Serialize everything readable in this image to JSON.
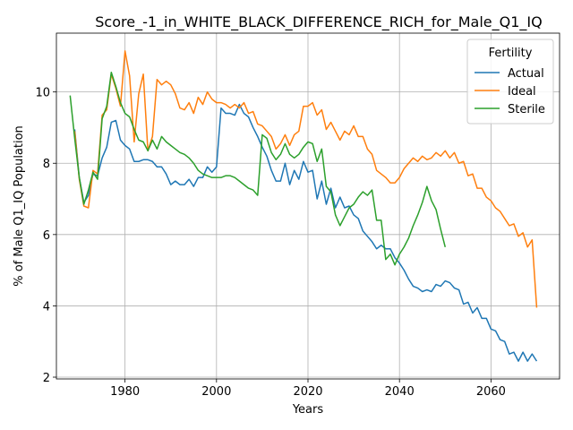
{
  "chart_data": {
    "type": "line",
    "title": "Score_-1_in_WHITE_BLACK_DIFFERENCE_RICH_for_Male_Q1_IQ",
    "xlabel": "Years",
    "ylabel": "% of Male Q1_IQ Population",
    "xlim": [
      1965,
      2075
    ],
    "ylim": [
      1.95,
      11.65
    ],
    "xticks": [
      1980,
      2000,
      2020,
      2040,
      2060
    ],
    "yticks": [
      2,
      4,
      6,
      8,
      10
    ],
    "grid": true,
    "legend": {
      "title": "Fertility",
      "placement": "top-right"
    },
    "series": [
      {
        "name": "Actual",
        "color": "#1f77b4",
        "x": [
          1969,
          1970,
          1971,
          1972,
          1973,
          1974,
          1975,
          1976,
          1977,
          1978,
          1979,
          1980,
          1981,
          1982,
          1983,
          1984,
          1985,
          1986,
          1987,
          1988,
          1989,
          1990,
          1991,
          1992,
          1993,
          1994,
          1995,
          1996,
          1997,
          1998,
          1999,
          2000,
          2001,
          2002,
          2003,
          2004,
          2005,
          2006,
          2007,
          2008,
          2009,
          2010,
          2011,
          2012,
          2013,
          2014,
          2015,
          2016,
          2017,
          2018,
          2019,
          2020,
          2021,
          2022,
          2023,
          2024,
          2025,
          2026,
          2027,
          2028,
          2029,
          2030,
          2031,
          2032,
          2033,
          2034,
          2035,
          2036,
          2037,
          2038,
          2039,
          2040,
          2041,
          2042,
          2043,
          2044,
          2045,
          2046,
          2047,
          2048,
          2049,
          2050,
          2051,
          2052,
          2053,
          2054,
          2055,
          2056,
          2057,
          2058,
          2059,
          2060,
          2061,
          2062,
          2063,
          2064,
          2065,
          2066,
          2067,
          2068,
          2069,
          2070
        ],
        "y": [
          8.95,
          7.6,
          6.9,
          7.1,
          7.7,
          7.65,
          8.15,
          8.45,
          9.15,
          9.2,
          8.65,
          8.5,
          8.4,
          8.05,
          8.05,
          8.1,
          8.1,
          8.05,
          7.9,
          7.9,
          7.7,
          7.4,
          7.5,
          7.4,
          7.4,
          7.55,
          7.35,
          7.6,
          7.6,
          7.9,
          7.75,
          7.9,
          9.55,
          9.4,
          9.4,
          9.35,
          9.65,
          9.4,
          9.3,
          9.0,
          8.75,
          8.45,
          8.2,
          7.8,
          7.5,
          7.5,
          8.0,
          7.4,
          7.8,
          7.55,
          8.05,
          7.75,
          7.8,
          7.0,
          7.5,
          6.85,
          7.3,
          6.75,
          7.05,
          6.75,
          6.8,
          6.55,
          6.45,
          6.1,
          5.95,
          5.8,
          5.6,
          5.7,
          5.6,
          5.6,
          5.35,
          5.2,
          5.0,
          4.75,
          4.55,
          4.5,
          4.4,
          4.45,
          4.4,
          4.6,
          4.55,
          4.7,
          4.65,
          4.5,
          4.45,
          4.05,
          4.1,
          3.8,
          3.95,
          3.65,
          3.65,
          3.35,
          3.3,
          3.05,
          3.0,
          2.65,
          2.7,
          2.45,
          2.7,
          2.45,
          2.65,
          2.45
        ]
      },
      {
        "name": "Ideal",
        "color": "#ff7f0e",
        "x": [
          1969,
          1970,
          1971,
          1972,
          1973,
          1974,
          1975,
          1976,
          1977,
          1978,
          1979,
          1980,
          1981,
          1982,
          1983,
          1984,
          1985,
          1986,
          1987,
          1988,
          1989,
          1990,
          1991,
          1992,
          1993,
          1994,
          1995,
          1996,
          1997,
          1998,
          1999,
          2000,
          2001,
          2002,
          2003,
          2004,
          2005,
          2006,
          2007,
          2008,
          2009,
          2010,
          2011,
          2012,
          2013,
          2014,
          2015,
          2016,
          2017,
          2018,
          2019,
          2020,
          2021,
          2022,
          2023,
          2024,
          2025,
          2026,
          2027,
          2028,
          2029,
          2030,
          2031,
          2032,
          2033,
          2034,
          2035,
          2036,
          2037,
          2038,
          2039,
          2040,
          2041,
          2042,
          2043,
          2044,
          2045,
          2046,
          2047,
          2048,
          2049,
          2050,
          2051,
          2052,
          2053,
          2054,
          2055,
          2056,
          2057,
          2058,
          2059,
          2060,
          2061,
          2062,
          2063,
          2064,
          2065,
          2066,
          2067,
          2068,
          2069,
          2070
        ],
        "y": [
          8.9,
          7.55,
          6.8,
          6.75,
          7.8,
          7.7,
          9.35,
          9.5,
          10.5,
          10.1,
          9.6,
          11.15,
          10.45,
          8.6,
          9.95,
          10.5,
          8.35,
          8.75,
          10.35,
          10.2,
          10.3,
          10.2,
          9.95,
          9.55,
          9.5,
          9.7,
          9.4,
          9.85,
          9.65,
          10.0,
          9.8,
          9.7,
          9.7,
          9.65,
          9.55,
          9.65,
          9.55,
          9.7,
          9.4,
          9.45,
          9.1,
          9.05,
          8.9,
          8.75,
          8.4,
          8.55,
          8.8,
          8.5,
          8.8,
          8.9,
          9.6,
          9.6,
          9.7,
          9.35,
          9.5,
          8.95,
          9.15,
          8.9,
          8.65,
          8.9,
          8.8,
          9.05,
          8.75,
          8.75,
          8.4,
          8.25,
          7.8,
          7.7,
          7.6,
          7.45,
          7.45,
          7.6,
          7.85,
          8.0,
          8.15,
          8.05,
          8.2,
          8.1,
          8.15,
          8.3,
          8.2,
          8.35,
          8.15,
          8.3,
          8.0,
          8.05,
          7.65,
          7.7,
          7.3,
          7.3,
          7.05,
          6.95,
          6.75,
          6.65,
          6.45,
          6.25,
          6.3,
          5.95,
          6.05,
          5.65,
          5.85,
          3.95
        ]
      },
      {
        "name": "Sterile",
        "color": "#2ca02c",
        "x": [
          1968,
          1969,
          1970,
          1971,
          1972,
          1973,
          1974,
          1975,
          1976,
          1977,
          1978,
          1979,
          1980,
          1981,
          1982,
          1983,
          1984,
          1985,
          1986,
          1987,
          1988,
          1989,
          1990,
          1991,
          1992,
          1993,
          1994,
          1995,
          1996,
          1997,
          1998,
          1999,
          2000,
          2001,
          2002,
          2003,
          2004,
          2005,
          2006,
          2007,
          2008,
          2009,
          2010,
          2011,
          2012,
          2013,
          2014,
          2015,
          2016,
          2017,
          2018,
          2019,
          2020,
          2021,
          2022,
          2023,
          2024,
          2025,
          2026,
          2027,
          2028,
          2029,
          2030,
          2031,
          2032,
          2033,
          2034,
          2035,
          2036,
          2037,
          2038,
          2039,
          2040,
          2041,
          2042,
          2043,
          2044,
          2045,
          2046,
          2047,
          2048,
          2049,
          2050
        ],
        "y": [
          9.9,
          8.7,
          7.6,
          6.85,
          7.25,
          7.75,
          7.55,
          9.25,
          9.6,
          10.55,
          10.15,
          9.7,
          9.4,
          9.3,
          8.95,
          8.65,
          8.6,
          8.35,
          8.65,
          8.4,
          8.75,
          8.6,
          8.5,
          8.4,
          8.3,
          8.25,
          8.15,
          8.0,
          7.8,
          7.7,
          7.65,
          7.6,
          7.6,
          7.6,
          7.65,
          7.65,
          7.6,
          7.5,
          7.4,
          7.3,
          7.25,
          7.1,
          8.8,
          8.7,
          8.3,
          8.1,
          8.25,
          8.55,
          8.25,
          8.15,
          8.25,
          8.45,
          8.6,
          8.55,
          8.05,
          8.4,
          7.35,
          7.2,
          6.55,
          6.25,
          6.5,
          6.75,
          6.85,
          7.05,
          7.2,
          7.1,
          7.25,
          6.4,
          6.4,
          5.3,
          5.45,
          5.15,
          5.45,
          5.65,
          5.9,
          6.25,
          6.55,
          6.9,
          7.35,
          6.95,
          6.7,
          6.15,
          5.65
        ]
      }
    ]
  }
}
